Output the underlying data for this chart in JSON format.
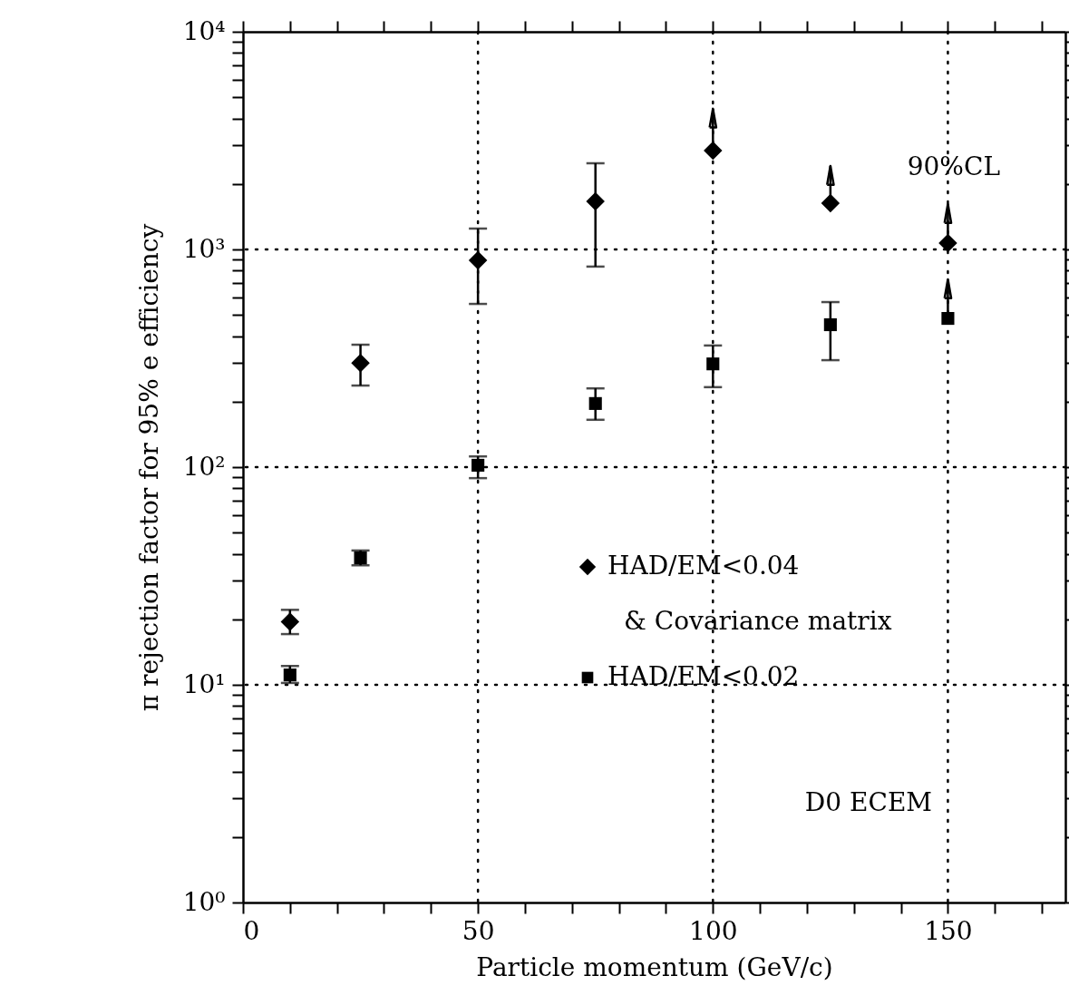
{
  "chart_data": {
    "type": "scatter",
    "xlabel": "Particle  momentum (GeV/c)",
    "ylabel": "π rejection factor for 95% e efficiency",
    "log": "y",
    "grid": true,
    "legend": "right",
    "xlim": [
      0,
      175
    ],
    "ylim": [
      1,
      10000
    ],
    "xticks": [
      0,
      {
        "value": 10,
        "label": null
      },
      {
        "value": 20,
        "label": null
      },
      {
        "value": 30,
        "label": null
      },
      {
        "value": 40,
        "label": null
      },
      50,
      {
        "value": 60,
        "label": null
      },
      {
        "value": 70,
        "label": null
      },
      {
        "value": 80,
        "label": null
      },
      {
        "value": 90,
        "label": null
      },
      100,
      {
        "value": 110,
        "label": null
      },
      {
        "value": 120,
        "label": null
      },
      {
        "value": 130,
        "label": null
      },
      {
        "value": 140,
        "label": null
      },
      150,
      {
        "value": 160,
        "label": null
      },
      {
        "value": 170,
        "label": null
      }
    ],
    "yticks": [
      {
        "value": 1,
        "label": "10⁰"
      },
      {
        "value": 2,
        "label": null
      },
      {
        "value": 3,
        "label": null
      },
      {
        "value": 4,
        "label": null
      },
      {
        "value": 5,
        "label": null
      },
      {
        "value": 6,
        "label": null
      },
      {
        "value": 7,
        "label": null
      },
      {
        "value": 8,
        "label": null
      },
      {
        "value": 9,
        "label": null
      },
      {
        "value": 10,
        "label": "10¹"
      },
      {
        "value": 20,
        "label": null
      },
      {
        "value": 30,
        "label": null
      },
      {
        "value": 40,
        "label": null
      },
      {
        "value": 50,
        "label": null
      },
      {
        "value": 60,
        "label": null
      },
      {
        "value": 70,
        "label": null
      },
      {
        "value": 80,
        "label": null
      },
      {
        "value": 90,
        "label": null
      },
      {
        "value": 100,
        "label": "10²"
      },
      {
        "value": 200,
        "label": null
      },
      {
        "value": 300,
        "label": null
      },
      {
        "value": 400,
        "label": null
      },
      {
        "value": 500,
        "label": null
      },
      {
        "value": 600,
        "label": null
      },
      {
        "value": 700,
        "label": null
      },
      {
        "value": 800,
        "label": null
      },
      {
        "value": 900,
        "label": null
      },
      {
        "value": 1000,
        "label": "10³"
      },
      {
        "value": 2000,
        "label": null
      },
      {
        "value": 3000,
        "label": null
      },
      {
        "value": 4000,
        "label": null
      },
      {
        "value": 5000,
        "label": null
      },
      {
        "value": 6000,
        "label": null
      },
      {
        "value": 7000,
        "label": null
      },
      {
        "value": 8000,
        "label": null
      },
      {
        "value": 9000,
        "label": null
      },
      {
        "value": 10000,
        "label": "10⁴"
      }
    ],
    "x": [
      10,
      25,
      50,
      75,
      100,
      125,
      150
    ],
    "series": [
      {
        "name": "HAD/EM<0.04",
        "color": "#000000",
        "marker": "diamond",
        "values": [
          19.5,
          301,
          891,
          1663,
          2845,
          1631,
          1070
        ],
        "errors": [
          [
            17.1,
            22.1
          ],
          [
            237,
            365
          ],
          [
            562,
            1247
          ],
          [
            834,
            2488
          ],
          [
            2845,
            4430
          ],
          [
            1631,
            2417
          ],
          [
            1070,
            1615
          ]
        ]
      },
      {
        "name": "HAD/EM<0.02",
        "color": "#000000",
        "marker": "square",
        "values": [
          11.1,
          38.3,
          102,
          196,
          298,
          451,
          482
        ],
        "errors": [
          [
            10.2,
            12.2
          ],
          [
            35.4,
            41.4
          ],
          [
            89,
            112
          ],
          [
            165,
            230
          ],
          [
            233,
            362
          ],
          [
            310,
            573
          ],
          [
            482,
            729
          ]
        ]
      }
    ],
    "annotations": [
      "& Covariance matrix",
      "90%CL",
      "D0 ECEM"
    ]
  }
}
